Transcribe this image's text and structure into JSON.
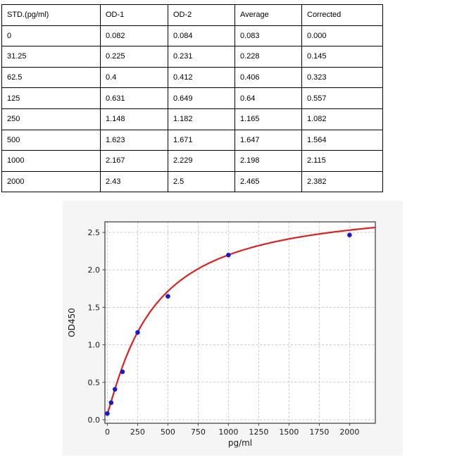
{
  "table": {
    "headers": [
      "STD.(pg/ml)",
      "OD-1",
      "OD-2",
      "Average",
      "Corrected"
    ],
    "rows": [
      [
        "0",
        "0.082",
        "0.084",
        "0.083",
        "0.000"
      ],
      [
        "31.25",
        "0.225",
        "0.231",
        "0.228",
        "0.145"
      ],
      [
        "62.5",
        "0.4",
        "0.412",
        "0.406",
        "0.323"
      ],
      [
        "125",
        "0.631",
        "0.649",
        "0.64",
        "0.557"
      ],
      [
        "250",
        "1.148",
        "1.182",
        "1.165",
        "1.082"
      ],
      [
        "500",
        "1.623",
        "1.671",
        "1.647",
        "1.564"
      ],
      [
        "1000",
        "2.167",
        "2.229",
        "2.198",
        "2.115"
      ],
      [
        "2000",
        "2.43",
        "2.5",
        "2.465",
        "2.382"
      ]
    ]
  },
  "chart_data": {
    "type": "scatter",
    "title": "",
    "xlabel": "pg/ml",
    "ylabel": "OD450",
    "x": [
      0,
      31.25,
      62.5,
      125,
      250,
      500,
      1000,
      2000
    ],
    "y": [
      0.083,
      0.228,
      0.406,
      0.64,
      1.165,
      1.647,
      2.198,
      2.465
    ],
    "fit_curve": {
      "model": "4PL",
      "a": 0.083,
      "b": 1.133,
      "c": 377,
      "d": 2.9
    },
    "xticks": [
      0,
      250,
      500,
      750,
      1000,
      1250,
      1500,
      1750,
      2000
    ],
    "xtick_labels": [
      "0",
      "250",
      "500",
      "750",
      "1000",
      "1250",
      "1500",
      "1750",
      "2000"
    ],
    "yticks": [
      0.0,
      0.5,
      1.0,
      1.5,
      2.0,
      2.5
    ],
    "ytick_labels": [
      "0.0",
      "0.5",
      "1.0",
      "1.5",
      "2.0",
      "2.5"
    ],
    "xlim": [
      -20,
      2213
    ],
    "ylim": [
      -0.047,
      2.641
    ],
    "grid": true,
    "legend": false,
    "colors": {
      "curve": "#dd2020",
      "points": "#1a1acc",
      "figure_bg": "#f5f5f5",
      "plot_bg": "#ffffff",
      "grid": "#c8c8c8",
      "spine": "#444444",
      "text": "#1a1a1a"
    }
  }
}
